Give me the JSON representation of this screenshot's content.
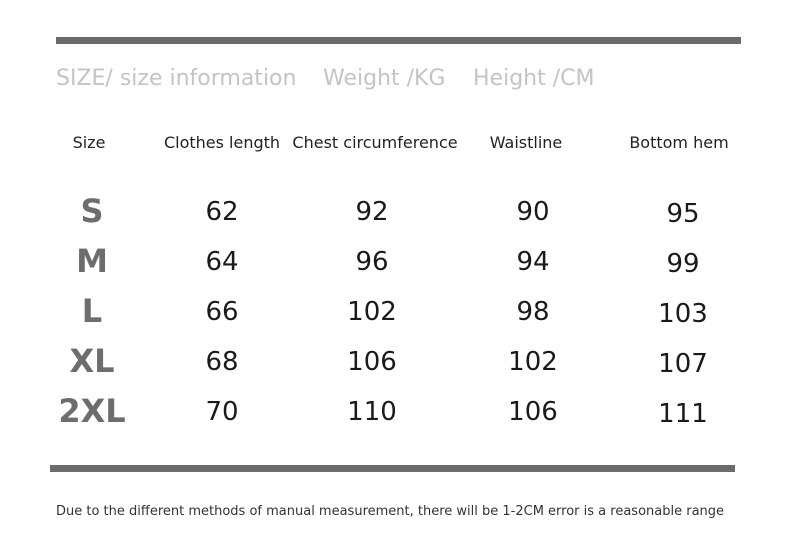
{
  "subheadings": [
    "SIZE/ size information",
    "Weight /KG",
    "Height /CM"
  ],
  "headers": [
    "Size",
    "Clothes length",
    "Chest circumference",
    "Waistline",
    "Bottom hem"
  ],
  "rows": [
    {
      "size": "S",
      "length": "62",
      "chest": "92",
      "waist": "90",
      "hem": "95"
    },
    {
      "size": "M",
      "length": "64",
      "chest": "96",
      "waist": "94",
      "hem": "99"
    },
    {
      "size": "L",
      "length": "66",
      "chest": "102",
      "waist": "98",
      "hem": "103"
    },
    {
      "size": "XL",
      "length": "68",
      "chest": "106",
      "waist": "102",
      "hem": "107"
    },
    {
      "size": "2XL",
      "length": "70",
      "chest": "110",
      "waist": "106",
      "hem": "111"
    }
  ],
  "note": "Due to the different methods of manual measurement, there will be 1-2CM error is a reasonable range"
}
